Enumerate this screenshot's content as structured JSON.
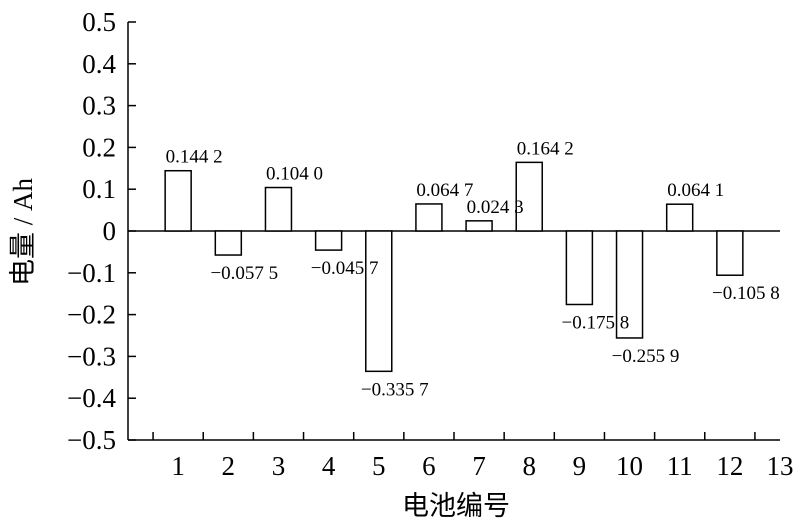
{
  "chart_data": {
    "type": "bar",
    "xlabel": "电池编号",
    "ylabel": "电量 / Ah",
    "ylim": [
      -0.5,
      0.5
    ],
    "xlim": [
      0,
      13
    ],
    "y_ticks": [
      "0.5",
      "0.4",
      "0.3",
      "0.2",
      "0.1",
      "0",
      "−0.1",
      "−0.2",
      "−0.3",
      "−0.4",
      "−0.5"
    ],
    "x_ticks": [
      "1",
      "2",
      "3",
      "4",
      "5",
      "6",
      "7",
      "8",
      "9",
      "10",
      "11",
      "12",
      "13"
    ],
    "categories": [
      1,
      2,
      3,
      4,
      5,
      6,
      7,
      8,
      9,
      10,
      11,
      12
    ],
    "values": [
      0.1442,
      -0.0575,
      0.104,
      -0.0457,
      -0.3357,
      0.0647,
      0.0243,
      0.1642,
      -0.1758,
      -0.2559,
      0.0641,
      -0.1058
    ],
    "data_labels": [
      "0.144 2",
      "−0.057 5",
      "0.104 0",
      "−0.045 7",
      "−0.335 7",
      "0.064 7",
      "0.024 3",
      "0.164 2",
      "−0.175 8",
      "−0.255 9",
      "0.064 1",
      "−0.105 8"
    ],
    "grid": false,
    "bar_fill": "#ffffff",
    "bar_stroke": "#000000"
  }
}
